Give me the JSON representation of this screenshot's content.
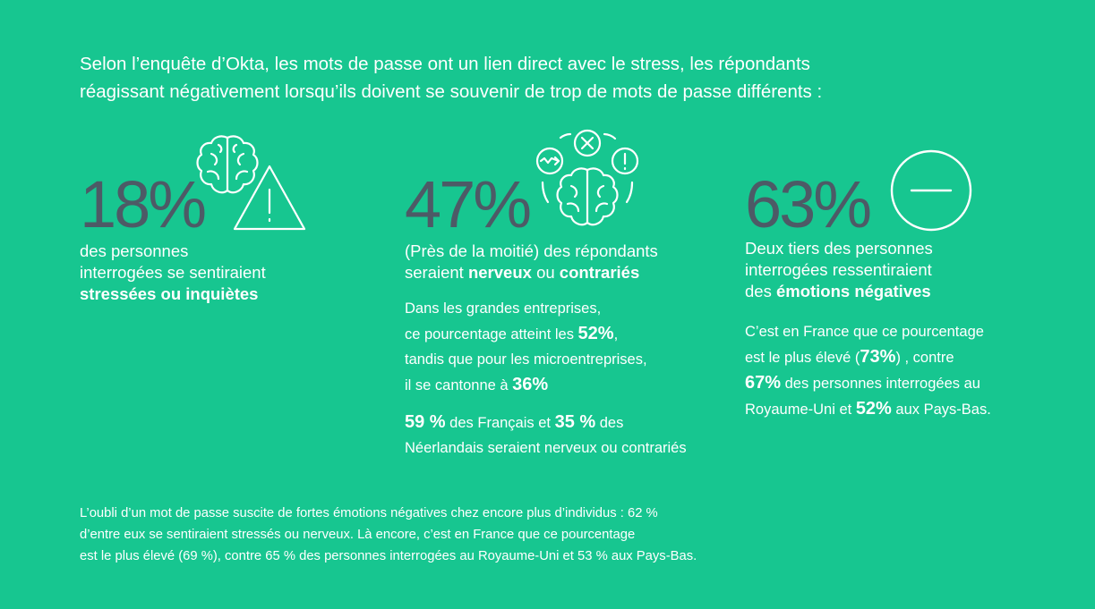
{
  "intro": {
    "line1": "Selon l’enquête d’Okta, les mots de passe ont un lien direct avec le stress, les répondants",
    "line2": "réagissant négativement lorsqu’ils doivent se souvenir de trop de mots de passe différents :"
  },
  "stat1": {
    "value": "18%",
    "line1": "des personnes",
    "line2": "interrogées se sentiraient",
    "line3_bold": "stressées ou inquiètes"
  },
  "stat2": {
    "value": "47%",
    "line1": "(Près de la moitié) des répondants",
    "line2_pre": "seraient ",
    "line2_bold1": "nerveux",
    "line2_mid": " ou ",
    "line2_bold2": "contrariés",
    "detail": {
      "l1": "Dans les grandes entreprises,",
      "l2_pre": "ce pourcentage atteint les ",
      "l2_num": "52%",
      "l2_post": ",",
      "l3": "tandis que pour les microentreprises,",
      "l4_pre": "il se cantonne à ",
      "l4_num": "36%"
    },
    "detail2": {
      "num1": "59 %",
      "mid": " des Français et ",
      "num2": "35 %",
      "post": " des",
      "l2": "Néerlandais seraient nerveux ou contrariés"
    }
  },
  "stat3": {
    "value": "63%",
    "line1": "Deux tiers des personnes",
    "line2": "interrogées ressentiraient",
    "line3_pre": "des ",
    "line3_bold": "émotions négatives",
    "detail": {
      "l1": "C’est en France que ce pourcentage",
      "l2_pre": "est le plus élevé  (",
      "l2_num": "73%",
      "l2_post": ") , contre",
      "l3_num": "67%",
      "l3_post": " des personnes interrogées au",
      "l4_pre": "Royaume-Uni et ",
      "l4_num": "52%",
      "l4_post": " aux Pays-Bas."
    }
  },
  "footer": {
    "line1": "L’oubli d’un mot de passe suscite de fortes émotions négatives chez encore plus d’individus : 62 %",
    "line2": "d’entre eux se sentiraient stressés ou nerveux. Là encore, c’est en France que ce pourcentage",
    "line3": "est le plus élevé (69 %), contre 65 % des personnes interrogées au Royaume-Uni et 53 % aux Pays-Bas."
  },
  "icons": {
    "stat1": "brain-warning-icon",
    "stat2": "brain-alerts-icon",
    "stat3": "minus-circle-icon"
  },
  "colors": {
    "background": "#17c690",
    "big_number": "#4d5a66",
    "text": "#ffffff"
  }
}
